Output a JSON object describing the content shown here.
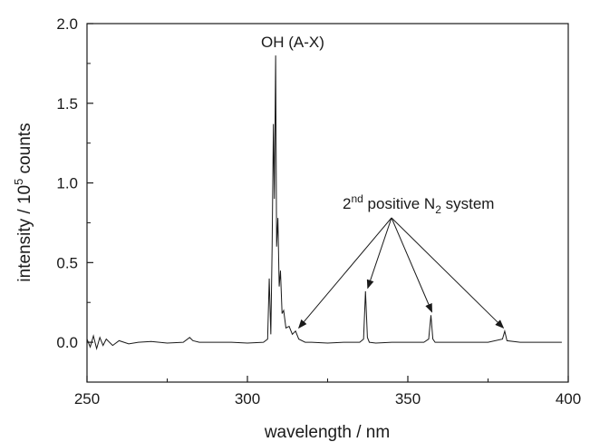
{
  "chart_data": {
    "type": "line",
    "title": "",
    "xlabel": "wavelength / nm",
    "ylabel_parts": {
      "main": "intensity / 10",
      "sup": "5",
      "tail": " counts"
    },
    "xlim": [
      250,
      400
    ],
    "ylim": [
      -0.25,
      2.0
    ],
    "x_ticks": [
      250,
      300,
      350,
      400
    ],
    "x_tick_labels": [
      "250",
      "300",
      "350",
      "400"
    ],
    "y_ticks": [
      0.0,
      0.5,
      1.0,
      1.5,
      2.0
    ],
    "y_tick_labels": [
      "0.0",
      "0.5",
      "1.0",
      "1.5",
      "2.0"
    ],
    "grid": false,
    "legend": "none",
    "line_color": "#1a1a1a",
    "series": [
      {
        "points": [
          [
            250,
            0.02
          ],
          [
            251,
            -0.03
          ],
          [
            252,
            0.04
          ],
          [
            253,
            -0.04
          ],
          [
            254,
            0.03
          ],
          [
            255,
            -0.02
          ],
          [
            256,
            0.02
          ],
          [
            258,
            -0.02
          ],
          [
            260,
            0.01
          ],
          [
            263,
            -0.01
          ],
          [
            266,
            0.0
          ],
          [
            270,
            0.005
          ],
          [
            275,
            -0.005
          ],
          [
            280,
            0.0
          ],
          [
            282,
            0.03
          ],
          [
            283,
            0.01
          ],
          [
            285,
            0.0
          ],
          [
            290,
            0.0
          ],
          [
            295,
            0.0
          ],
          [
            300,
            -0.005
          ],
          [
            305,
            0.0
          ],
          [
            306.3,
            0.02
          ],
          [
            306.8,
            0.4
          ],
          [
            307.3,
            0.05
          ],
          [
            307.7,
            0.6
          ],
          [
            308.1,
            1.37
          ],
          [
            308.4,
            0.9
          ],
          [
            308.8,
            1.8
          ],
          [
            309.1,
            0.6
          ],
          [
            309.5,
            0.78
          ],
          [
            309.9,
            0.35
          ],
          [
            310.3,
            0.45
          ],
          [
            310.8,
            0.18
          ],
          [
            311.3,
            0.2
          ],
          [
            312.0,
            0.09
          ],
          [
            313.0,
            0.1
          ],
          [
            314.0,
            0.05
          ],
          [
            315.0,
            0.07
          ],
          [
            316.0,
            0.02
          ],
          [
            318,
            0.0
          ],
          [
            320,
            0.0
          ],
          [
            325,
            -0.005
          ],
          [
            330,
            0.0
          ],
          [
            335,
            0.0
          ],
          [
            336.2,
            0.02
          ],
          [
            336.8,
            0.32
          ],
          [
            337.4,
            0.03
          ],
          [
            338,
            0.0
          ],
          [
            340,
            -0.005
          ],
          [
            345,
            0.0
          ],
          [
            350,
            0.0
          ],
          [
            355,
            0.0
          ],
          [
            356.5,
            0.02
          ],
          [
            357.2,
            0.17
          ],
          [
            357.8,
            0.02
          ],
          [
            358.5,
            0.0
          ],
          [
            365,
            0.0
          ],
          [
            370,
            0.0
          ],
          [
            375,
            0.0
          ],
          [
            379.5,
            0.02
          ],
          [
            380.2,
            0.07
          ],
          [
            380.9,
            0.01
          ],
          [
            385,
            0.0
          ],
          [
            390,
            0.0
          ],
          [
            395,
            0.0
          ],
          [
            398,
            0.0
          ]
        ]
      }
    ],
    "annotations": [
      {
        "text": "OH (A-X)"
      },
      {
        "text_parts": {
          "a": "2",
          "a_sup": "nd",
          "b": " positive N",
          "b_sub": "2",
          "c": " system"
        }
      }
    ],
    "arrow_targets": [
      [
        316,
        0.09
      ],
      [
        337.5,
        0.34
      ],
      [
        357.5,
        0.19
      ],
      [
        379.8,
        0.09
      ]
    ]
  }
}
